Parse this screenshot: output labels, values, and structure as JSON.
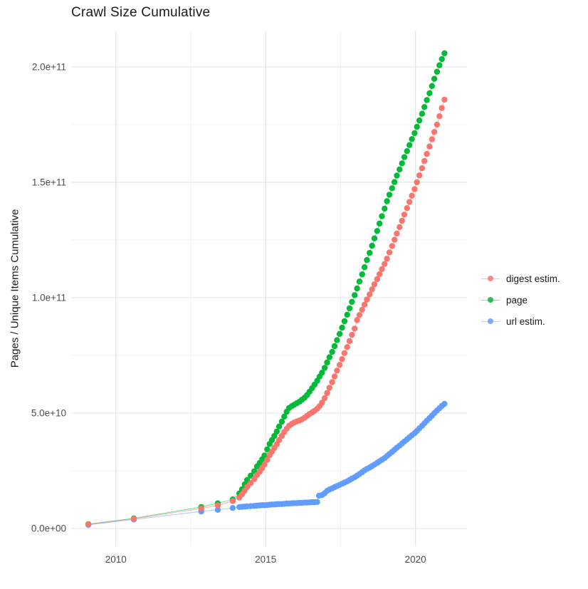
{
  "page": {
    "title": "Crawl Size Cumulative"
  },
  "chart_data": {
    "type": "scatter",
    "title": "Crawl Size Cumulative",
    "xlabel": "",
    "ylabel": "Pages / Unique Items Cumulative",
    "legend_position": "right",
    "grid": true,
    "value_unit": "1e9 pages (y values below are billions; axis shows scientific notation)",
    "xlim": [
      2008.52,
      2021.72
    ],
    "ylim_e9": [
      -7.7,
      215.7
    ],
    "x_major_ticks": [
      {
        "label": "2010",
        "value": 2010
      },
      {
        "label": "2015",
        "value": 2015
      },
      {
        "label": "2020",
        "value": 2020
      }
    ],
    "x_minor_ticks": [
      2012.5,
      2017.5
    ],
    "y_major_ticks": [
      {
        "label": "0.0e+00",
        "value": 0
      },
      {
        "label": "5.0e+10",
        "value": 50
      },
      {
        "label": "1.0e+11",
        "value": 100
      },
      {
        "label": "1.5e+11",
        "value": 150
      },
      {
        "label": "2.0e+11",
        "value": 200
      }
    ],
    "y_minor_ticks": [
      25,
      75,
      125,
      175
    ],
    "draw_order": [
      "url estim.",
      "page",
      "digest estim."
    ],
    "series": [
      {
        "name": "digest estim.",
        "color": "#F8766D",
        "points": [
          [
            2009.08,
            1.85
          ],
          [
            2010.6,
            4.2
          ],
          [
            2012.85,
            8.7
          ],
          [
            2013.4,
            10.0
          ],
          [
            2013.9,
            11.9
          ],
          [
            2014.12,
            13.4
          ],
          [
            2014.21,
            14.8
          ],
          [
            2014.3,
            16.4
          ],
          [
            2014.38,
            18.0
          ],
          [
            2014.5,
            19.7
          ],
          [
            2014.62,
            21.4
          ],
          [
            2014.71,
            23.2
          ],
          [
            2014.8,
            24.6
          ],
          [
            2014.88,
            26.1
          ],
          [
            2014.96,
            27.7
          ],
          [
            2015.05,
            29.8
          ],
          [
            2015.13,
            31.8
          ],
          [
            2015.21,
            33.3
          ],
          [
            2015.29,
            34.9
          ],
          [
            2015.37,
            36.5
          ],
          [
            2015.45,
            38.3
          ],
          [
            2015.54,
            40.1
          ],
          [
            2015.62,
            41.8
          ],
          [
            2015.7,
            43.2
          ],
          [
            2015.78,
            44.5
          ],
          [
            2015.87,
            45.3
          ],
          [
            2015.95,
            45.9
          ],
          [
            2016.04,
            46.4
          ],
          [
            2016.13,
            46.8
          ],
          [
            2016.21,
            47.3
          ],
          [
            2016.3,
            48.0
          ],
          [
            2016.38,
            48.8
          ],
          [
            2016.46,
            49.6
          ],
          [
            2016.55,
            50.3
          ],
          [
            2016.63,
            51.0
          ],
          [
            2016.72,
            51.9
          ],
          [
            2016.8,
            53.0
          ],
          [
            2016.88,
            54.5
          ],
          [
            2016.97,
            56.5
          ],
          [
            2017.05,
            58.7
          ],
          [
            2017.13,
            61.0
          ],
          [
            2017.22,
            63.4
          ],
          [
            2017.3,
            65.9
          ],
          [
            2017.38,
            68.4
          ],
          [
            2017.47,
            70.9
          ],
          [
            2017.55,
            73.4
          ],
          [
            2017.63,
            76.0
          ],
          [
            2017.72,
            78.6
          ],
          [
            2017.8,
            81.2
          ],
          [
            2017.88,
            83.9
          ],
          [
            2017.97,
            86.6
          ],
          [
            2018.05,
            90.3
          ],
          [
            2018.13,
            92.5
          ],
          [
            2018.22,
            94.8
          ],
          [
            2018.3,
            97.0
          ],
          [
            2018.38,
            99.2
          ],
          [
            2018.47,
            101.4
          ],
          [
            2018.55,
            103.6
          ],
          [
            2018.63,
            105.8
          ],
          [
            2018.72,
            108.0
          ],
          [
            2018.8,
            110.2
          ],
          [
            2018.88,
            112.4
          ],
          [
            2018.97,
            114.6
          ],
          [
            2019.05,
            116.9
          ],
          [
            2019.13,
            119.6
          ],
          [
            2019.22,
            122.4
          ],
          [
            2019.3,
            125.1
          ],
          [
            2019.38,
            127.8
          ],
          [
            2019.47,
            130.6
          ],
          [
            2019.55,
            133.3
          ],
          [
            2019.63,
            136.0
          ],
          [
            2019.72,
            138.8
          ],
          [
            2019.8,
            141.5
          ],
          [
            2019.88,
            144.2
          ],
          [
            2019.97,
            147.0
          ],
          [
            2020.05,
            150.0
          ],
          [
            2020.13,
            153.0
          ],
          [
            2020.22,
            156.1
          ],
          [
            2020.3,
            159.2
          ],
          [
            2020.38,
            162.3
          ],
          [
            2020.47,
            165.5
          ],
          [
            2020.55,
            168.6
          ],
          [
            2020.63,
            171.8
          ],
          [
            2020.72,
            175.0
          ],
          [
            2020.8,
            178.6
          ],
          [
            2020.88,
            182.2
          ],
          [
            2020.97,
            185.8
          ]
        ]
      },
      {
        "name": "page",
        "color": "#00BA38",
        "points": [
          [
            2009.08,
            1.9
          ],
          [
            2010.6,
            4.4
          ],
          [
            2012.85,
            9.3
          ],
          [
            2013.4,
            10.9
          ],
          [
            2013.9,
            12.6
          ],
          [
            2014.12,
            15.2
          ],
          [
            2014.21,
            17.0
          ],
          [
            2014.3,
            19.1
          ],
          [
            2014.38,
            21.0
          ],
          [
            2014.5,
            22.9
          ],
          [
            2014.62,
            24.8
          ],
          [
            2014.71,
            26.9
          ],
          [
            2014.8,
            28.4
          ],
          [
            2014.88,
            30.0
          ],
          [
            2014.96,
            31.6
          ],
          [
            2015.05,
            34.3
          ],
          [
            2015.13,
            36.6
          ],
          [
            2015.21,
            38.3
          ],
          [
            2015.29,
            40.1
          ],
          [
            2015.37,
            42.0
          ],
          [
            2015.45,
            44.2
          ],
          [
            2015.54,
            46.3
          ],
          [
            2015.62,
            48.5
          ],
          [
            2015.7,
            50.6
          ],
          [
            2015.78,
            52.2
          ],
          [
            2015.87,
            53.0
          ],
          [
            2015.95,
            53.6
          ],
          [
            2016.04,
            54.3
          ],
          [
            2016.13,
            55.0
          ],
          [
            2016.21,
            55.8
          ],
          [
            2016.3,
            56.7
          ],
          [
            2016.38,
            57.8
          ],
          [
            2016.46,
            59.2
          ],
          [
            2016.55,
            60.8
          ],
          [
            2016.63,
            62.3
          ],
          [
            2016.72,
            64.0
          ],
          [
            2016.8,
            65.8
          ],
          [
            2016.88,
            67.5
          ],
          [
            2016.97,
            69.6
          ],
          [
            2017.05,
            71.9
          ],
          [
            2017.13,
            74.2
          ],
          [
            2017.22,
            76.5
          ],
          [
            2017.3,
            79.0
          ],
          [
            2017.38,
            81.6
          ],
          [
            2017.47,
            84.3
          ],
          [
            2017.55,
            87.0
          ],
          [
            2017.63,
            89.8
          ],
          [
            2017.72,
            92.6
          ],
          [
            2017.8,
            95.4
          ],
          [
            2017.88,
            98.2
          ],
          [
            2017.97,
            101.1
          ],
          [
            2018.05,
            104.0
          ],
          [
            2018.13,
            107.0
          ],
          [
            2018.22,
            110.1
          ],
          [
            2018.3,
            113.2
          ],
          [
            2018.38,
            116.3
          ],
          [
            2018.47,
            119.4
          ],
          [
            2018.55,
            122.5
          ],
          [
            2018.63,
            125.7
          ],
          [
            2018.72,
            128.9
          ],
          [
            2018.8,
            132.1
          ],
          [
            2018.88,
            135.3
          ],
          [
            2018.97,
            138.6
          ],
          [
            2019.05,
            141.8
          ],
          [
            2019.13,
            144.6
          ],
          [
            2019.22,
            147.4
          ],
          [
            2019.3,
            150.1
          ],
          [
            2019.38,
            152.9
          ],
          [
            2019.47,
            155.6
          ],
          [
            2019.55,
            158.2
          ],
          [
            2019.63,
            160.9
          ],
          [
            2019.72,
            163.5
          ],
          [
            2019.8,
            166.1
          ],
          [
            2019.88,
            168.7
          ],
          [
            2019.97,
            171.3
          ],
          [
            2020.05,
            174.0
          ],
          [
            2020.13,
            176.8
          ],
          [
            2020.22,
            179.7
          ],
          [
            2020.3,
            182.6
          ],
          [
            2020.38,
            185.6
          ],
          [
            2020.47,
            188.6
          ],
          [
            2020.55,
            191.7
          ],
          [
            2020.63,
            194.8
          ],
          [
            2020.72,
            197.9
          ],
          [
            2020.8,
            200.7
          ],
          [
            2020.88,
            203.4
          ],
          [
            2020.97,
            205.9
          ]
        ]
      },
      {
        "name": "url estim.",
        "color": "#619CFF",
        "points": [
          [
            2009.08,
            1.6
          ],
          [
            2010.6,
            3.9
          ],
          [
            2012.85,
            7.4
          ],
          [
            2013.4,
            8.1
          ],
          [
            2013.9,
            8.9
          ],
          [
            2014.12,
            9.3
          ],
          [
            2014.21,
            9.4
          ],
          [
            2014.3,
            9.5
          ],
          [
            2014.38,
            9.6
          ],
          [
            2014.5,
            9.7
          ],
          [
            2014.62,
            9.8
          ],
          [
            2014.71,
            9.9
          ],
          [
            2014.8,
            10.0
          ],
          [
            2014.88,
            10.1
          ],
          [
            2014.96,
            10.1
          ],
          [
            2015.05,
            10.2
          ],
          [
            2015.13,
            10.3
          ],
          [
            2015.21,
            10.4
          ],
          [
            2015.29,
            10.4
          ],
          [
            2015.37,
            10.5
          ],
          [
            2015.45,
            10.6
          ],
          [
            2015.54,
            10.6
          ],
          [
            2015.62,
            10.7
          ],
          [
            2015.7,
            10.8
          ],
          [
            2015.78,
            10.8
          ],
          [
            2015.87,
            10.9
          ],
          [
            2015.95,
            11.0
          ],
          [
            2016.04,
            11.0
          ],
          [
            2016.13,
            11.1
          ],
          [
            2016.21,
            11.1
          ],
          [
            2016.3,
            11.2
          ],
          [
            2016.38,
            11.2
          ],
          [
            2016.46,
            11.3
          ],
          [
            2016.55,
            11.4
          ],
          [
            2016.63,
            11.4
          ],
          [
            2016.72,
            11.5
          ],
          [
            2016.78,
            14.2
          ],
          [
            2016.88,
            14.5
          ],
          [
            2016.97,
            15.3
          ],
          [
            2017.05,
            16.3
          ],
          [
            2017.13,
            16.9
          ],
          [
            2017.22,
            17.4
          ],
          [
            2017.3,
            17.9
          ],
          [
            2017.38,
            18.4
          ],
          [
            2017.47,
            18.9
          ],
          [
            2017.55,
            19.4
          ],
          [
            2017.63,
            19.9
          ],
          [
            2017.72,
            20.4
          ],
          [
            2017.8,
            21.0
          ],
          [
            2017.88,
            21.6
          ],
          [
            2017.97,
            22.2
          ],
          [
            2018.05,
            22.9
          ],
          [
            2018.13,
            23.6
          ],
          [
            2018.22,
            24.4
          ],
          [
            2018.3,
            25.2
          ],
          [
            2018.38,
            25.8
          ],
          [
            2018.47,
            26.4
          ],
          [
            2018.55,
            27.0
          ],
          [
            2018.63,
            27.7
          ],
          [
            2018.72,
            28.4
          ],
          [
            2018.8,
            29.1
          ],
          [
            2018.88,
            29.8
          ],
          [
            2018.97,
            30.5
          ],
          [
            2019.05,
            31.4
          ],
          [
            2019.13,
            32.3
          ],
          [
            2019.22,
            33.2
          ],
          [
            2019.3,
            34.1
          ],
          [
            2019.38,
            35.0
          ],
          [
            2019.47,
            35.9
          ],
          [
            2019.55,
            36.8
          ],
          [
            2019.63,
            37.7
          ],
          [
            2019.72,
            38.6
          ],
          [
            2019.8,
            39.5
          ],
          [
            2019.88,
            40.4
          ],
          [
            2019.97,
            41.3
          ],
          [
            2020.05,
            42.3
          ],
          [
            2020.13,
            43.4
          ],
          [
            2020.22,
            44.5
          ],
          [
            2020.3,
            45.6
          ],
          [
            2020.38,
            46.7
          ],
          [
            2020.47,
            47.8
          ],
          [
            2020.55,
            48.9
          ],
          [
            2020.63,
            50.0
          ],
          [
            2020.72,
            51.1
          ],
          [
            2020.8,
            52.1
          ],
          [
            2020.88,
            53.1
          ],
          [
            2020.97,
            54.0
          ]
        ]
      }
    ],
    "style": {
      "major_grid_color": "#e3e3e3",
      "minor_grid_color": "#efefef",
      "tick_label_color": "#4d4d4d",
      "text_color": "#1a1a1a",
      "background": "#ffffff",
      "point_radius": 4.2
    }
  }
}
